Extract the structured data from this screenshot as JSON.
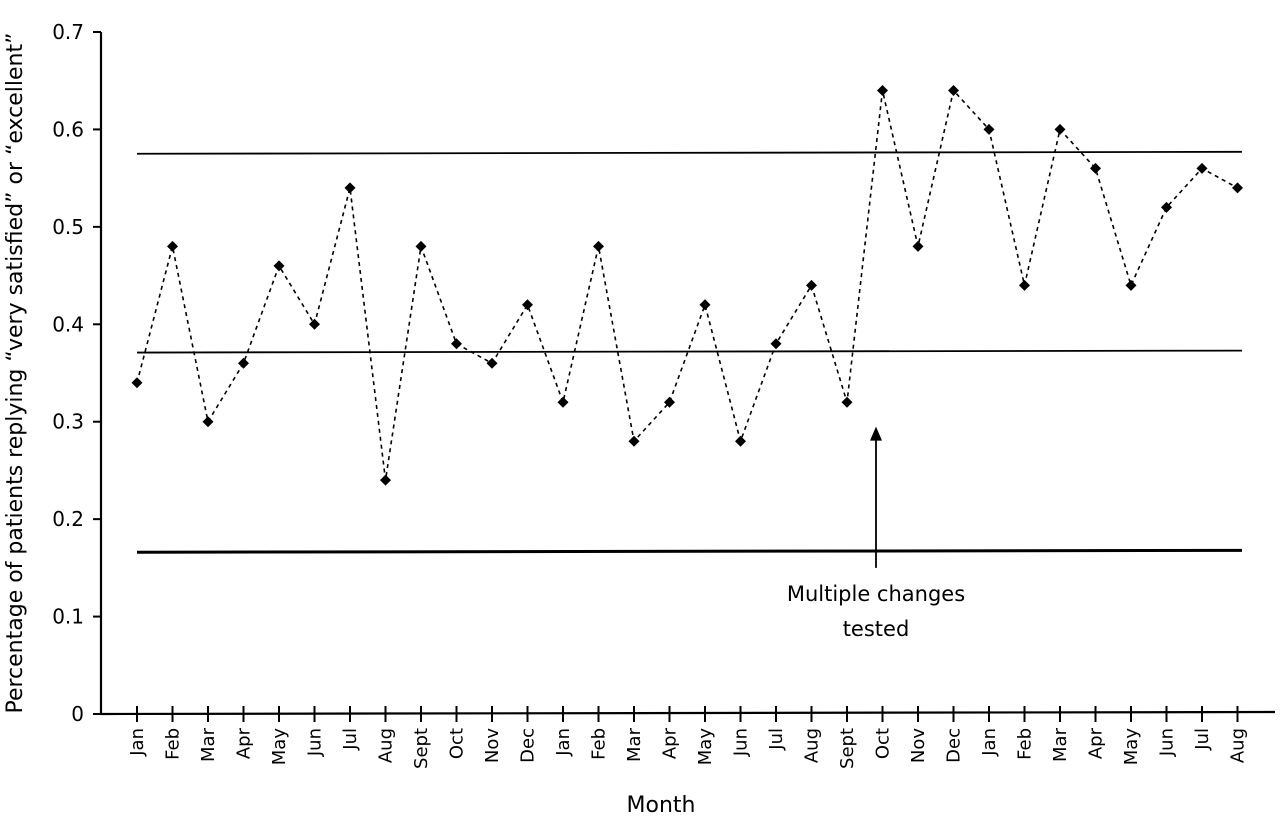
{
  "chart_data": {
    "type": "line",
    "xlabel": "Month",
    "ylabel": "Percentage of patients replying “very satisfied” or “excellent”",
    "ylim": [
      0,
      0.7
    ],
    "yticks": [
      "0",
      "0.1",
      "0.2",
      "0.3",
      "0.4",
      "0.5",
      "0.6",
      "0.7"
    ],
    "categories": [
      "Jan",
      "Feb",
      "Mar",
      "Apr",
      "May",
      "Jun",
      "Jul",
      "Aug",
      "Sept",
      "Oct",
      "Nov",
      "Dec",
      "Jan",
      "Feb",
      "Mar",
      "Apr",
      "May",
      "Jun",
      "Jul",
      "Aug",
      "Sept",
      "Oct",
      "Nov",
      "Dec",
      "Jan",
      "Feb",
      "Mar",
      "Apr",
      "May",
      "Jun",
      "Jul",
      "Aug"
    ],
    "series": [
      {
        "values": [
          0.34,
          0.48,
          0.3,
          0.36,
          0.46,
          0.4,
          0.54,
          0.24,
          0.48,
          0.38,
          0.36,
          0.42,
          0.32,
          0.48,
          0.28,
          0.32,
          0.42,
          0.28,
          0.38,
          0.44,
          0.32,
          0.64,
          0.48,
          0.64,
          0.6,
          0.44,
          0.6,
          0.56,
          0.44,
          0.52,
          0.56,
          0.54
        ]
      }
    ],
    "reference_lines": [
      {
        "name": "upper",
        "start": 0.575,
        "end": 0.577
      },
      {
        "name": "center",
        "start": 0.371,
        "end": 0.373
      },
      {
        "name": "lower",
        "start": 0.166,
        "end": 0.168
      }
    ],
    "annotation": {
      "lines": [
        "Multiple changes",
        "tested"
      ],
      "arrow_tip_y": 0.295,
      "arrow_tail_y": 0.15
    },
    "grid": false,
    "legend": "none"
  }
}
